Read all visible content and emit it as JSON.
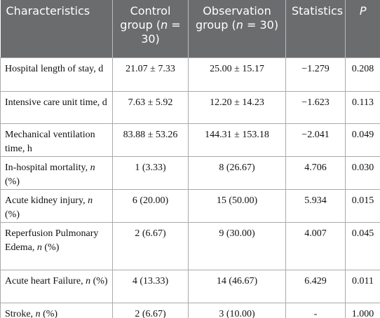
{
  "table": {
    "header": [
      "Characteristics",
      [
        "Control group (",
        {
          "text": "n",
          "italic": true
        },
        " = 30)"
      ],
      [
        "Observation group (",
        {
          "text": "n",
          "italic": true
        },
        " = 30)"
      ],
      "Statistics",
      [
        {
          "text": "P",
          "italic": true
        }
      ]
    ],
    "rows": [
      [
        "Hospital length of stay, d",
        "21.07 ± 7.33",
        "25.00 ± 15.17",
        "−1.279",
        "0.208"
      ],
      [
        "Intensive care unit time, d",
        "7.63 ± 5.92",
        "12.20 ± 14.23",
        "−1.623",
        "0.113"
      ],
      [
        "Mechanical ventilation time, h",
        "83.88 ± 53.26",
        "144.31 ± 153.18",
        "−2.041",
        "0.049"
      ],
      [
        [
          "In-hospital mortality, ",
          {
            "text": "n",
            "italic": true
          },
          " (%)"
        ],
        "1 (3.33)",
        "8 (26.67)",
        "4.706",
        "0.030"
      ],
      [
        [
          "Acute kidney injury, ",
          {
            "text": "n",
            "italic": true
          },
          " (%)"
        ],
        "6 (20.00)",
        "15 (50.00)",
        "5.934",
        "0.015"
      ],
      [
        [
          "Reperfusion Pulmonary Edema, ",
          {
            "text": "n",
            "italic": true
          },
          " (%)"
        ],
        "2 (6.67)",
        "9 (30.00)",
        "4.007",
        "0.045"
      ],
      [
        [
          "Acute heart Failure, ",
          {
            "text": "n",
            "italic": true
          },
          " (%)"
        ],
        "4 (13.33)",
        "14 (46.67)",
        "6.429",
        "0.011"
      ],
      [
        [
          "Stroke, ",
          {
            "text": "n",
            "italic": true
          },
          " (%)"
        ],
        "2 (6.67)",
        "3 (10.00)",
        "-",
        "1.000"
      ]
    ]
  }
}
